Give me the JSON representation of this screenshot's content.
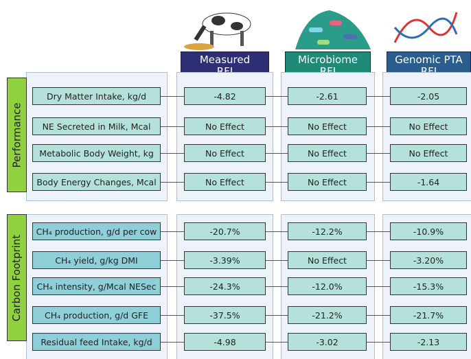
{
  "columns": [
    {
      "lines": [
        "Measured",
        "RFI"
      ]
    },
    {
      "lines": [
        "Microbiome",
        "RFI"
      ]
    },
    {
      "lines": [
        "Genomic PTA",
        "RFI"
      ]
    }
  ],
  "groups": [
    {
      "label": "Performance",
      "rows": [
        {
          "label": "Dry Matter Intake, kg/d",
          "values": [
            "-4.82",
            "-2.61",
            "-2.05"
          ]
        },
        {
          "label": "NE Secreted in Milk, Mcal",
          "values": [
            "No Effect",
            "No Effect",
            "No Effect"
          ]
        },
        {
          "label": "Metabolic Body Weight, kg",
          "values": [
            "No Effect",
            "No Effect",
            "No Effect"
          ]
        },
        {
          "label": "Body Energy Changes, Mcal",
          "values": [
            "No Effect",
            "No Effect",
            "-1.64"
          ]
        }
      ]
    },
    {
      "label": "Carbon Footprint",
      "rows": [
        {
          "label": "CH₄ production, g/d per cow",
          "values": [
            "-20.7%",
            "-12.2%",
            "-10.9%"
          ]
        },
        {
          "label": "CH₄ yield, g/kg DMI",
          "values": [
            "-3.39%",
            "No Effect",
            "-3.20%"
          ]
        },
        {
          "label": "CH₄ intensity, g/Mcal NESec",
          "values": [
            "-24.3%",
            "-12.0%",
            "-15.3%"
          ]
        },
        {
          "label": "CH₄ production, g/d GFE",
          "values": [
            "-37.5%",
            "-21.2%",
            "-21.7%"
          ]
        },
        {
          "label": "Residual feed Intake, kg/d",
          "values": [
            "-4.98",
            "-3.02",
            "-2.13"
          ]
        }
      ]
    }
  ]
}
